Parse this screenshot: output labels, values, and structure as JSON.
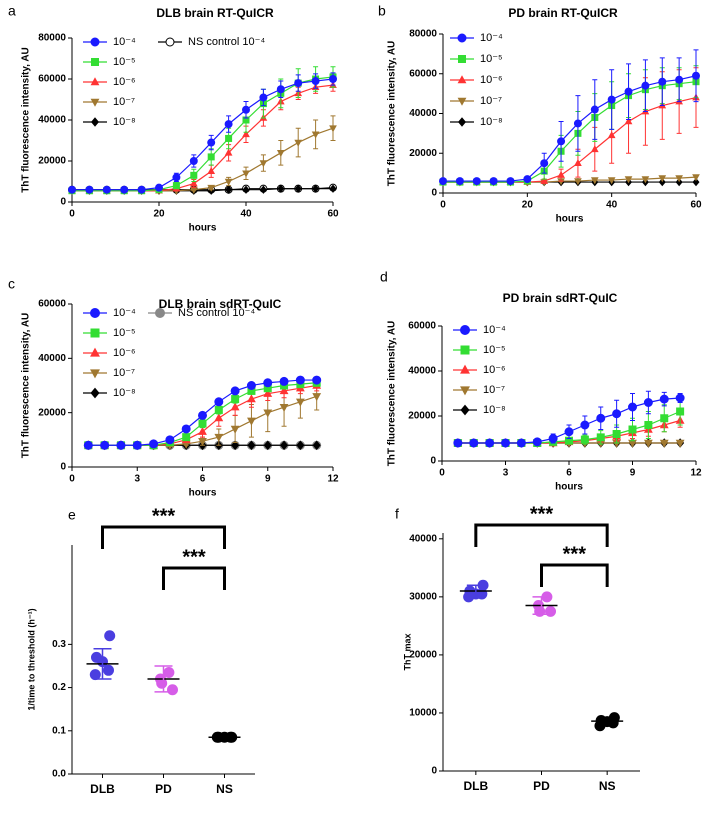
{
  "chart_data": [
    {
      "type": "line",
      "panel_label": "a",
      "title": "DLB brain RT-QuICR",
      "xlabel": "hours",
      "ylabel": "ThT fluorescence intensity, AU",
      "x": [
        0,
        4,
        8,
        12,
        16,
        20,
        24,
        28,
        32,
        36,
        40,
        44,
        48,
        52,
        56,
        60
      ],
      "xlim": [
        0,
        60
      ],
      "xticks": [
        0,
        20,
        40,
        60
      ],
      "ylim": [
        0,
        80000
      ],
      "yticks": [
        0,
        20000,
        40000,
        60000,
        80000
      ],
      "legend": "upper left",
      "series": [
        {
          "name": "10⁻⁴",
          "color": "#1a1aff",
          "marker": "circle",
          "values": [
            6000,
            6000,
            6000,
            6000,
            6000,
            7000,
            12000,
            20000,
            29000,
            38000,
            45000,
            51000,
            55000,
            58000,
            59000,
            60000
          ],
          "errors": [
            500,
            500,
            500,
            500,
            500,
            1000,
            2000,
            3000,
            3500,
            4000,
            4000,
            4000,
            4000,
            4000,
            3500,
            3000
          ]
        },
        {
          "name": "10⁻⁵",
          "color": "#33dd33",
          "marker": "square",
          "values": [
            5500,
            5500,
            5500,
            5500,
            5500,
            6000,
            8000,
            13000,
            22000,
            31000,
            40000,
            48000,
            53000,
            58000,
            60000,
            61000
          ],
          "errors": [
            0,
            0,
            0,
            0,
            0,
            500,
            1500,
            3000,
            4000,
            5000,
            6000,
            7000,
            7000,
            7000,
            6000,
            5000
          ]
        },
        {
          "name": "10⁻⁶",
          "color": "#ff3333",
          "marker": "triangle",
          "values": [
            5500,
            5500,
            5500,
            5500,
            5500,
            5500,
            6500,
            9000,
            15000,
            24000,
            33000,
            41000,
            49000,
            53000,
            56000,
            57000
          ],
          "errors": [
            0,
            0,
            0,
            0,
            0,
            0,
            1000,
            2000,
            3000,
            4000,
            4000,
            4000,
            4000,
            3000,
            3000,
            3000
          ]
        },
        {
          "name": "10⁻⁷",
          "color": "#a07830",
          "marker": "triangle-down",
          "values": [
            5500,
            5500,
            5500,
            5500,
            5500,
            5500,
            5500,
            6000,
            7000,
            10000,
            14000,
            19000,
            24000,
            29000,
            33000,
            36000
          ],
          "errors": [
            0,
            0,
            0,
            0,
            0,
            0,
            0,
            500,
            1000,
            2000,
            3000,
            4000,
            6000,
            7000,
            7000,
            6000
          ]
        },
        {
          "name": "10⁻⁸",
          "color": "#000000",
          "marker": "diamond",
          "values": [
            5500,
            5500,
            5500,
            5500,
            5500,
            5500,
            5500,
            5500,
            5500,
            6000,
            6000,
            6000,
            6500,
            6500,
            6500,
            6500
          ]
        },
        {
          "name": "NS control 10⁻⁴",
          "color": "#000000",
          "marker": "open-circle",
          "values": [
            6000,
            6000,
            6000,
            6000,
            6000,
            6000,
            6000,
            6000,
            6000,
            6000,
            6500,
            6500,
            6500,
            6500,
            6500,
            7000
          ]
        }
      ]
    },
    {
      "type": "line",
      "panel_label": "b",
      "title": "PD brain RT-QuICR",
      "xlabel": "hours",
      "ylabel": "ThT fluorescence intensity, AU",
      "x": [
        0,
        4,
        8,
        12,
        16,
        20,
        24,
        28,
        32,
        36,
        40,
        44,
        48,
        52,
        56,
        60
      ],
      "xlim": [
        0,
        60
      ],
      "xticks": [
        0,
        20,
        40,
        60
      ],
      "ylim": [
        0,
        80000
      ],
      "yticks": [
        0,
        20000,
        40000,
        60000,
        80000
      ],
      "legend": "upper left",
      "series": [
        {
          "name": "10⁻⁴",
          "color": "#1a1aff",
          "marker": "circle",
          "values": [
            6000,
            6000,
            6000,
            6000,
            6000,
            7000,
            15000,
            26000,
            35000,
            42000,
            47000,
            51000,
            54000,
            56000,
            57000,
            59000
          ],
          "errors": [
            500,
            500,
            500,
            500,
            500,
            1000,
            5000,
            10000,
            14000,
            15000,
            15000,
            14000,
            13000,
            12000,
            11000,
            13000
          ]
        },
        {
          "name": "10⁻⁵",
          "color": "#33dd33",
          "marker": "square",
          "values": [
            5500,
            5500,
            5500,
            5500,
            5500,
            6000,
            11000,
            21000,
            30000,
            38000,
            44000,
            49000,
            52000,
            54000,
            55000,
            56000
          ],
          "errors": [
            0,
            0,
            0,
            0,
            0,
            1000,
            4000,
            8000,
            11000,
            12000,
            12000,
            11000,
            10000,
            9000,
            8000,
            8000
          ]
        },
        {
          "name": "10⁻⁶",
          "color": "#ff3333",
          "marker": "triangle",
          "values": [
            5500,
            5500,
            5500,
            5500,
            5500,
            5500,
            6000,
            9000,
            15000,
            22000,
            29000,
            36000,
            41000,
            44000,
            46000,
            48000
          ],
          "errors": [
            0,
            0,
            0,
            0,
            0,
            0,
            1000,
            3000,
            7000,
            11000,
            14000,
            16000,
            17000,
            17000,
            16000,
            15000
          ]
        },
        {
          "name": "10⁻⁷",
          "color": "#a07830",
          "marker": "triangle-down",
          "values": [
            5500,
            5500,
            5500,
            5500,
            5500,
            5500,
            5500,
            6000,
            6000,
            6500,
            6500,
            7000,
            7000,
            7500,
            7500,
            8000
          ]
        },
        {
          "name": "10⁻⁸",
          "color": "#000000",
          "marker": "diamond",
          "values": [
            5500,
            5500,
            5500,
            5500,
            5500,
            5500,
            5500,
            5500,
            5500,
            5500,
            5500,
            5500,
            5500,
            5500,
            5500,
            5500
          ]
        }
      ]
    },
    {
      "type": "line",
      "panel_label": "c",
      "title": "DLB brain sdRT-QuIC",
      "xlabel": "hours",
      "ylabel": "ThT fluorescence intensity, AU",
      "x": [
        0.75,
        1.5,
        2.25,
        3,
        3.75,
        4.5,
        5.25,
        6,
        6.75,
        7.5,
        8.25,
        9,
        9.75,
        10.5,
        11.25
      ],
      "xlim": [
        0,
        12
      ],
      "xticks": [
        0,
        3,
        6,
        9,
        12
      ],
      "ylim": [
        0,
        60000
      ],
      "yticks": [
        0,
        20000,
        40000,
        60000
      ],
      "legend": "upper left",
      "series": [
        {
          "name": "10⁻⁴",
          "color": "#1a1aff",
          "marker": "circle",
          "values": [
            8000,
            8000,
            8000,
            8000,
            8500,
            10000,
            14000,
            19000,
            24000,
            28000,
            30000,
            31000,
            31500,
            32000,
            32000
          ],
          "errors": [
            0,
            0,
            0,
            0,
            0,
            500,
            1000,
            1000,
            1000,
            1000,
            1000,
            1000,
            1000,
            1000,
            1000
          ]
        },
        {
          "name": "10⁻⁵",
          "color": "#33dd33",
          "marker": "square",
          "values": [
            8000,
            8000,
            8000,
            8000,
            8000,
            9000,
            11000,
            16000,
            21000,
            25000,
            28000,
            29000,
            30000,
            30500,
            31000
          ],
          "errors": [
            0,
            0,
            0,
            0,
            0,
            500,
            1000,
            1500,
            1500,
            1500,
            1000,
            1000,
            1000,
            1000,
            1000
          ]
        },
        {
          "name": "10⁻⁶",
          "color": "#ff3333",
          "marker": "triangle",
          "values": [
            8000,
            8000,
            8000,
            8000,
            8000,
            8500,
            10000,
            13000,
            18000,
            22000,
            25000,
            27000,
            28000,
            29000,
            30000
          ],
          "errors": [
            0,
            0,
            0,
            0,
            0,
            500,
            1000,
            2000,
            3000,
            3000,
            3000,
            2500,
            2500,
            2000,
            2000
          ]
        },
        {
          "name": "10⁻⁷",
          "color": "#a07830",
          "marker": "triangle-down",
          "values": [
            8000,
            8000,
            8000,
            8000,
            8000,
            8000,
            8500,
            9500,
            11000,
            14000,
            17000,
            20000,
            22000,
            24000,
            26000
          ],
          "errors": [
            0,
            0,
            0,
            0,
            0,
            0,
            500,
            1500,
            3000,
            5000,
            6000,
            7000,
            7000,
            6000,
            5000
          ]
        },
        {
          "name": "10⁻⁸",
          "color": "#000000",
          "marker": "diamond",
          "values": [
            8000,
            8000,
            8000,
            8000,
            8000,
            8000,
            8000,
            8000,
            8000,
            8000,
            8000,
            8000,
            8000,
            8000,
            8000
          ]
        },
        {
          "name": "NS control 10⁻⁴",
          "color": "#888888",
          "marker": "circle",
          "values": [
            8000,
            8000,
            8000,
            8000,
            8000,
            8000,
            8000,
            8000,
            8000,
            8000,
            8000,
            8000,
            8000,
            8000,
            8000
          ]
        }
      ]
    },
    {
      "type": "line",
      "panel_label": "d",
      "title": "PD brain sdRT-QuIC",
      "xlabel": "hours",
      "ylabel": "ThT fluorescence intensity, AU",
      "x": [
        0.75,
        1.5,
        2.25,
        3,
        3.75,
        4.5,
        5.25,
        6,
        6.75,
        7.5,
        8.25,
        9,
        9.75,
        10.5,
        11.25
      ],
      "xlim": [
        0,
        12
      ],
      "xticks": [
        0,
        3,
        6,
        9,
        12
      ],
      "ylim": [
        0,
        60000
      ],
      "yticks": [
        0,
        20000,
        40000,
        60000
      ],
      "legend": "upper left",
      "series": [
        {
          "name": "10⁻⁴",
          "color": "#1a1aff",
          "marker": "circle",
          "values": [
            8000,
            8000,
            8000,
            8000,
            8000,
            8500,
            10000,
            13000,
            16000,
            19000,
            21000,
            24000,
            26000,
            27500,
            28000
          ],
          "errors": [
            500,
            500,
            500,
            500,
            500,
            1000,
            2000,
            3000,
            4000,
            5000,
            6000,
            6000,
            5000,
            3000,
            2000
          ]
        },
        {
          "name": "10⁻⁵",
          "color": "#33dd33",
          "marker": "square",
          "values": [
            8000,
            8000,
            8000,
            8000,
            8000,
            8000,
            8500,
            9000,
            9500,
            10500,
            12000,
            14000,
            16000,
            19000,
            22000
          ],
          "errors": [
            0,
            0,
            0,
            0,
            0,
            0,
            500,
            1000,
            2000,
            3000,
            4000,
            5000,
            6000,
            6000,
            6000
          ]
        },
        {
          "name": "10⁻⁶",
          "color": "#ff3333",
          "marker": "triangle",
          "values": [
            8000,
            8000,
            8000,
            8000,
            8000,
            8000,
            8000,
            8500,
            9000,
            10000,
            11000,
            12500,
            14000,
            16000,
            18000
          ],
          "errors": [
            0,
            0,
            0,
            0,
            0,
            0,
            0,
            500,
            1000,
            1500,
            2000,
            2500,
            3000,
            3000,
            3000
          ]
        },
        {
          "name": "10⁻⁷",
          "color": "#a07830",
          "marker": "triangle-down",
          "values": [
            8000,
            8000,
            8000,
            8000,
            8000,
            8000,
            8000,
            8000,
            8000,
            8000,
            8000,
            8000,
            8000,
            8000,
            8000
          ]
        },
        {
          "name": "10⁻⁸",
          "color": "#000000",
          "marker": "diamond",
          "values": [
            8000,
            8000,
            8000,
            8000,
            8000,
            8000,
            8000,
            8000,
            8000,
            8000,
            8000,
            8000,
            8000,
            8000,
            8000
          ]
        }
      ]
    },
    {
      "type": "dot",
      "panel_label": "e",
      "ylabel": "1/time to threshold (h⁻¹)",
      "categories": [
        "DLB",
        "PD",
        "NS"
      ],
      "colors": [
        "#4a3ee0",
        "#d65de8",
        "#000000"
      ],
      "points": [
        [
          0.32,
          0.27,
          0.26,
          0.24,
          0.23
        ],
        [
          0.235,
          0.22,
          0.21,
          0.195
        ],
        [
          0.085,
          0.085,
          0.085,
          0.085,
          0.085
        ]
      ],
      "means": [
        0.255,
        0.22,
        0.085
      ],
      "sds": [
        0.035,
        0.03,
        0
      ],
      "ylim": [
        0,
        0.53
      ],
      "yticks": [
        {
          "value": 0,
          "label": "0.0"
        },
        0.1,
        0.2,
        0.3
      ],
      "annotations": [
        {
          "text": "***"
        },
        {
          "text": "***"
        }
      ]
    },
    {
      "type": "dot",
      "panel_label": "f",
      "ylabel": "ThT max",
      "categories": [
        "DLB",
        "PD",
        "NS"
      ],
      "colors": [
        "#4a3ee0",
        "#d65de8",
        "#000000"
      ],
      "points": [
        [
          32000,
          31000,
          30500,
          30500,
          30000
        ],
        [
          30000,
          28500,
          27500,
          27500
        ],
        [
          9200,
          8700,
          8500,
          8300,
          7800
        ]
      ],
      "means": [
        31000,
        28500,
        8600
      ],
      "sds": [
        1000,
        1500,
        500
      ],
      "ylim": [
        0,
        41000
      ],
      "yticks": [
        0,
        10000,
        20000,
        30000,
        40000
      ],
      "annotations": [
        {
          "text": "***"
        },
        {
          "text": "***"
        }
      ]
    }
  ]
}
